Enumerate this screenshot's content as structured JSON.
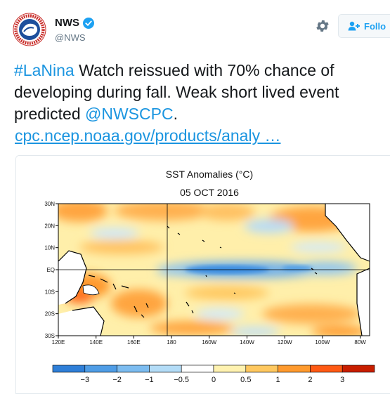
{
  "account": {
    "name": "NWS",
    "handle": "@NWS",
    "logo_text": "NATIONAL WEATHER SERVICE"
  },
  "follow": {
    "label": "Follo"
  },
  "tweet": {
    "hashtag": "#LaNina",
    "line1_rest": " Watch reissued with 70% chance of",
    "line2": "developing during fall. Weak short lived event",
    "line3_pre": "predicted ",
    "mention": "@NWSCPC",
    "line3_post": ".",
    "url": "cpc.ncep.noaa.gov/products/analy  …"
  },
  "chart_data": {
    "type": "heatmap",
    "title": "SST Anomalies (°C)",
    "subtitle": "05 OCT 2016",
    "x_ticks": [
      "120E",
      "140E",
      "160E",
      "180",
      "160W",
      "140W",
      "120W",
      "100W",
      "80W"
    ],
    "y_ticks": [
      "30N",
      "20N",
      "10N",
      "EQ",
      "10S",
      "20S",
      "30S"
    ],
    "colorbar_ticks": [
      "−3",
      "−2",
      "−1",
      "−0.5",
      "0",
      "0.5",
      "1",
      "2",
      "3"
    ],
    "colorbar_colors": [
      "#2f7fd8",
      "#4f9de6",
      "#7cbcf0",
      "#b3dcf7",
      "#ffffff",
      "#fff2b0",
      "#ffc860",
      "#ff9a2e",
      "#ff5a14",
      "#c81e00"
    ]
  },
  "colors": {
    "accent": "#1da1f2",
    "link": "#1b95e0",
    "text": "#14171a",
    "muted": "#657786"
  }
}
